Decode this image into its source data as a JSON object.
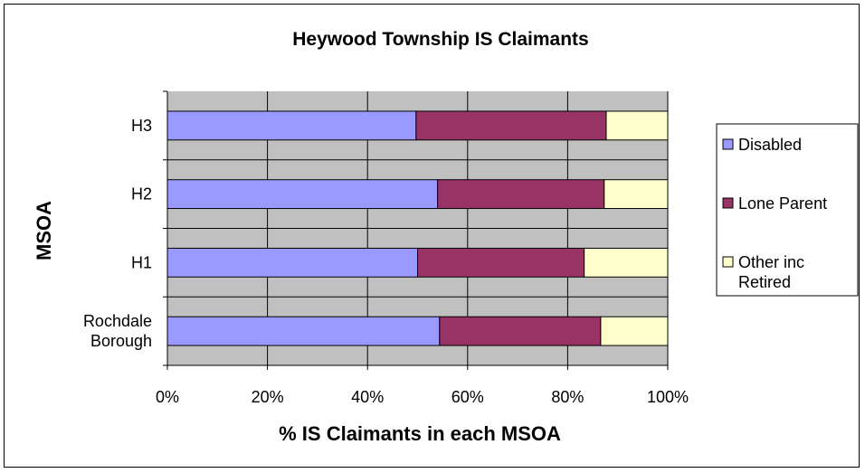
{
  "chart_data": {
    "type": "bar",
    "orientation": "horizontal",
    "stacked": "percent",
    "title": "Heywood Township IS Claimants",
    "xlabel": "% IS Claimants in each MSOA",
    "ylabel": "MSOA",
    "xlim": [
      0,
      100
    ],
    "xticks": [
      "0%",
      "20%",
      "40%",
      "60%",
      "80%",
      "100%"
    ],
    "categories": [
      {
        "lines": [
          "H3"
        ]
      },
      {
        "lines": [
          "H2"
        ]
      },
      {
        "lines": [
          "H1"
        ]
      },
      {
        "lines": [
          "Rochdale",
          "Borough"
        ]
      }
    ],
    "series": [
      {
        "name": "Disabled",
        "legend_lines": [
          "Disabled"
        ],
        "color": "#9999ff",
        "values": [
          49.7,
          54.0,
          50.0,
          54.4
        ]
      },
      {
        "name": "Lone Parent",
        "legend_lines": [
          "Lone Parent"
        ],
        "color": "#993366",
        "values": [
          38.0,
          33.3,
          33.3,
          32.2
        ]
      },
      {
        "name": "Other inc Retired",
        "legend_lines": [
          "Other inc",
          "Retired"
        ],
        "color": "#ffffcc",
        "values": [
          12.3,
          12.7,
          16.7,
          13.4
        ]
      }
    ],
    "grid": true,
    "plot_background": "#c0c0c0",
    "legend_position": "right"
  }
}
